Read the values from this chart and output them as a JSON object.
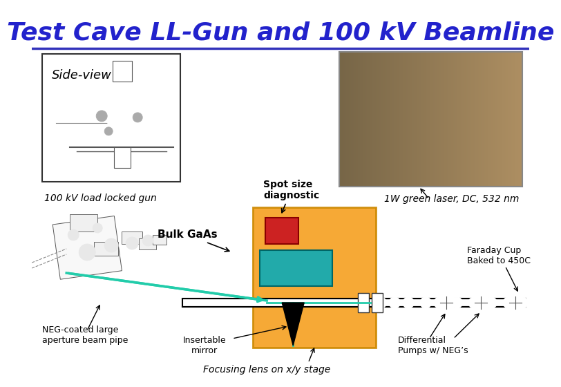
{
  "title": "Test Cave LL-Gun and 100 kV Beamline",
  "title_color": "#2222CC",
  "title_fontsize": 26,
  "bg_color": "#FFFFFF",
  "labels": {
    "side_view": "Side-view",
    "gun_label": "100 kV load locked gun",
    "bulk_gaas": "Bulk GaAs",
    "spot_size": "Spot size\ndiagnostic",
    "laser_label": "1W green laser, DC, 532 nm",
    "faraday": "Faraday Cup\nBaked to 450C",
    "neg_coated": "NEG-coated large\naperture beam pipe",
    "insertable": "Insertable\nmirror",
    "diff_pumps": "Differential\nPumps w/ NEG’s",
    "focusing": "Focusing lens on x/y stage"
  },
  "label_fontsize": 9,
  "orange_color": "#F5A020",
  "red_color": "#CC2222",
  "teal_color": "#22AAAA",
  "beam_color": "#22CCAA"
}
